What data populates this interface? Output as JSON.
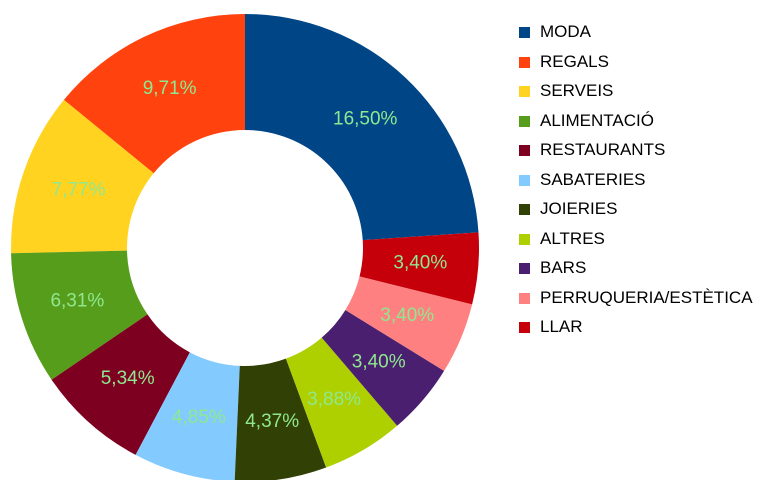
{
  "chart_data": {
    "type": "donut",
    "categories": [
      "MODA",
      "REGALS",
      "SERVEIS",
      "ALIMENTACIÓ",
      "RESTAURANTS",
      "SABATERIES",
      "JOIERIES",
      "ALTRES",
      "BARS",
      "PERRUQUERIA/ESTÈTICA",
      "LLAR"
    ],
    "values": [
      16.5,
      9.71,
      7.77,
      6.31,
      5.34,
      4.85,
      4.37,
      3.88,
      3.4,
      3.4,
      3.4
    ],
    "value_labels": [
      "16,50%",
      "9,71%",
      "7,77%",
      "6,31%",
      "5,34%",
      "4,85%",
      "4,37%",
      "3,88%",
      "3,40%",
      "3,40%",
      "3,40%"
    ],
    "colors": [
      "#004586",
      "#ff420e",
      "#ffd320",
      "#579d1c",
      "#7e0021",
      "#83caff",
      "#314004",
      "#aecf00",
      "#4b1f6f",
      "#ff8080",
      "#c5000b"
    ],
    "label_color": "#8fe88f",
    "legend": "right"
  }
}
